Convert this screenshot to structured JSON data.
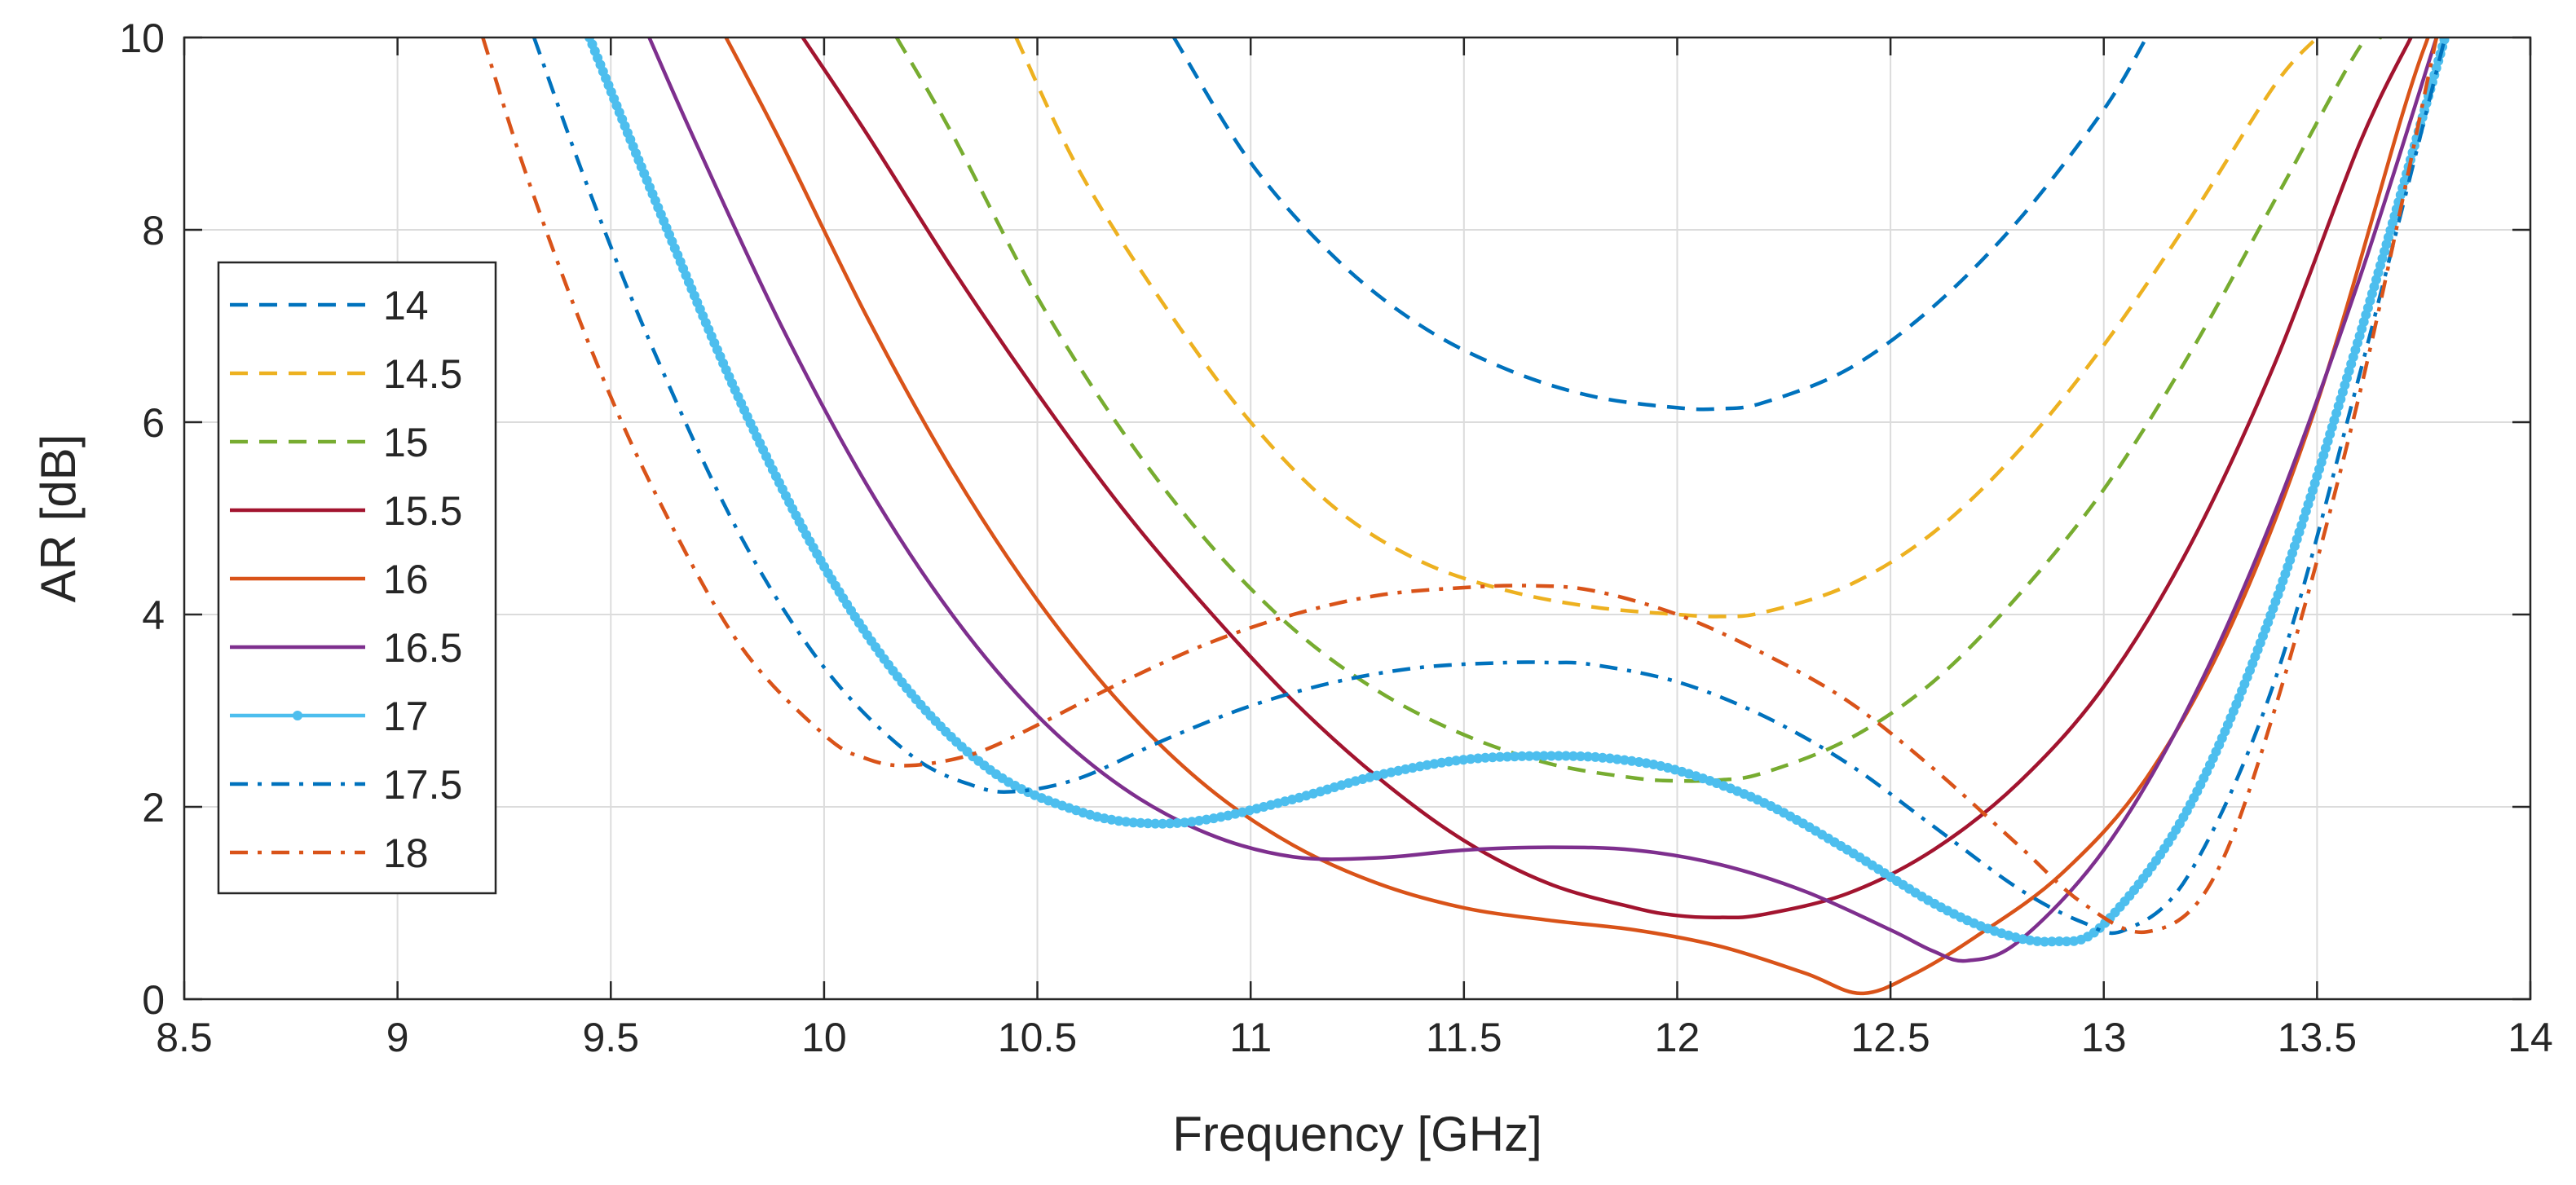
{
  "chart_data": {
    "type": "line",
    "title": "",
    "xlabel": "Frequency [GHz]",
    "ylabel": "AR [dB]",
    "xlim": [
      8.5,
      14
    ],
    "ylim": [
      0,
      10
    ],
    "grid": true,
    "legend_position": "left",
    "xticks": [
      "8.5",
      "9",
      "9.5",
      "10",
      "10.5",
      "11",
      "11.5",
      "12",
      "12.5",
      "13",
      "13.5",
      "14"
    ],
    "yticks": [
      "0",
      "2",
      "4",
      "6",
      "8",
      "10"
    ],
    "series": [
      {
        "name": "14",
        "color": "#0072BD",
        "style": "dashed",
        "x": [
          10.82,
          11.0,
          11.2,
          11.4,
          11.6,
          11.8,
          12.0,
          12.1,
          12.2,
          12.4,
          12.6,
          12.8,
          13.0,
          13.1
        ],
        "y": [
          10.0,
          8.7,
          7.7,
          7.0,
          6.55,
          6.27,
          6.15,
          6.14,
          6.2,
          6.55,
          7.2,
          8.1,
          9.25,
          10.0
        ]
      },
      {
        "name": "14.5",
        "color": "#EDB120",
        "style": "dashed",
        "x": [
          10.45,
          10.6,
          10.8,
          11.0,
          11.2,
          11.4,
          11.6,
          11.8,
          12.0,
          12.1,
          12.2,
          12.4,
          12.6,
          12.8,
          13.0,
          13.2,
          13.4,
          13.5
        ],
        "y": [
          10.0,
          8.6,
          7.2,
          6.0,
          5.1,
          4.55,
          4.25,
          4.08,
          4.0,
          3.98,
          4.02,
          4.3,
          4.85,
          5.7,
          6.8,
          8.1,
          9.5,
          10.0
        ]
      },
      {
        "name": "15",
        "color": "#77AC30",
        "style": "dashed",
        "x": [
          10.17,
          10.3,
          10.5,
          10.7,
          10.9,
          11.1,
          11.3,
          11.5,
          11.7,
          11.9,
          12.0,
          12.1,
          12.2,
          12.4,
          12.6,
          12.8,
          13.0,
          13.2,
          13.4,
          13.6,
          13.65
        ],
        "y": [
          10.0,
          9.0,
          7.3,
          5.9,
          4.75,
          3.85,
          3.2,
          2.75,
          2.45,
          2.3,
          2.27,
          2.28,
          2.35,
          2.7,
          3.3,
          4.2,
          5.3,
          6.7,
          8.3,
          9.9,
          10.0
        ]
      },
      {
        "name": "15.5",
        "color": "#A2142F",
        "style": "solid",
        "x": [
          9.95,
          10.1,
          10.3,
          10.5,
          10.7,
          10.9,
          11.1,
          11.3,
          11.5,
          11.7,
          11.9,
          12.0,
          12.1,
          12.2,
          12.4,
          12.6,
          12.8,
          13.0,
          13.2,
          13.4,
          13.6,
          13.72
        ],
        "y": [
          10.0,
          9.0,
          7.6,
          6.3,
          5.1,
          4.05,
          3.1,
          2.3,
          1.65,
          1.2,
          0.95,
          0.87,
          0.85,
          0.88,
          1.1,
          1.55,
          2.25,
          3.25,
          4.7,
          6.6,
          8.9,
          10.0
        ]
      },
      {
        "name": "16",
        "color": "#D95319",
        "style": "solid",
        "x": [
          9.77,
          9.9,
          10.1,
          10.3,
          10.5,
          10.7,
          10.9,
          11.1,
          11.3,
          11.5,
          11.7,
          11.9,
          12.1,
          12.3,
          12.43,
          12.55,
          12.7,
          12.9,
          13.1,
          13.3,
          13.5,
          13.7,
          13.76
        ],
        "y": [
          10.0,
          8.9,
          7.1,
          5.5,
          4.15,
          3.05,
          2.2,
          1.6,
          1.2,
          0.95,
          0.82,
          0.72,
          0.55,
          0.27,
          0.06,
          0.25,
          0.65,
          1.3,
          2.3,
          3.9,
          6.2,
          9.2,
          10.0
        ]
      },
      {
        "name": "16.5",
        "color": "#7E2F8E",
        "style": "solid",
        "x": [
          9.59,
          9.7,
          9.9,
          10.1,
          10.3,
          10.5,
          10.7,
          10.9,
          11.1,
          11.3,
          11.5,
          11.7,
          11.9,
          12.1,
          12.3,
          12.5,
          12.6,
          12.68,
          12.8,
          13.0,
          13.2,
          13.4,
          13.6,
          13.78
        ],
        "y": [
          10.0,
          8.9,
          7.0,
          5.35,
          4.0,
          2.95,
          2.2,
          1.72,
          1.48,
          1.47,
          1.55,
          1.58,
          1.55,
          1.4,
          1.12,
          0.72,
          0.5,
          0.4,
          0.6,
          1.55,
          3.05,
          5.05,
          7.5,
          10.0
        ]
      },
      {
        "name": "17",
        "color": "#4DBEEE",
        "style": "solid-marker",
        "x": [
          9.45,
          9.6,
          9.8,
          10.0,
          10.2,
          10.4,
          10.6,
          10.75,
          10.9,
          11.1,
          11.3,
          11.5,
          11.7,
          11.85,
          12.0,
          12.2,
          12.4,
          12.6,
          12.75,
          12.88,
          13.0,
          13.2,
          13.4,
          13.6,
          13.8
        ],
        "y": [
          10.0,
          8.35,
          6.25,
          4.5,
          3.2,
          2.35,
          1.95,
          1.83,
          1.87,
          2.08,
          2.33,
          2.49,
          2.53,
          2.5,
          2.38,
          2.05,
          1.55,
          1.0,
          0.7,
          0.6,
          0.78,
          2.0,
          4.1,
          6.9,
          10.0
        ]
      },
      {
        "name": "17.5",
        "color": "#0072BD",
        "style": "dashdot",
        "x": [
          9.32,
          9.45,
          9.6,
          9.8,
          10.0,
          10.2,
          10.35,
          10.45,
          10.6,
          10.8,
          11.0,
          11.2,
          11.4,
          11.6,
          11.7,
          11.8,
          12.0,
          12.2,
          12.4,
          12.6,
          12.8,
          12.95,
          13.05,
          13.2,
          13.4,
          13.6,
          13.8
        ],
        "y": [
          10.0,
          8.4,
          6.75,
          4.85,
          3.45,
          2.55,
          2.22,
          2.16,
          2.3,
          2.7,
          3.05,
          3.3,
          3.45,
          3.5,
          3.5,
          3.48,
          3.3,
          2.95,
          2.45,
          1.8,
          1.15,
          0.8,
          0.72,
          1.3,
          3.3,
          6.5,
          10.0
        ]
      },
      {
        "name": "18",
        "color": "#D95319",
        "style": "dashdot",
        "x": [
          9.2,
          9.3,
          9.45,
          9.6,
          9.8,
          10.0,
          10.1,
          10.2,
          10.35,
          10.5,
          10.7,
          10.9,
          11.1,
          11.3,
          11.5,
          11.65,
          11.8,
          12.0,
          12.2,
          12.4,
          12.6,
          12.8,
          12.95,
          13.1,
          13.25,
          13.4,
          13.6,
          13.78
        ],
        "y": [
          10.0,
          8.6,
          6.8,
          5.3,
          3.7,
          2.75,
          2.5,
          2.43,
          2.55,
          2.85,
          3.3,
          3.7,
          4.0,
          4.2,
          4.28,
          4.3,
          4.25,
          4.0,
          3.6,
          3.1,
          2.4,
          1.6,
          1.0,
          0.7,
          1.2,
          3.0,
          6.3,
          10.0
        ]
      }
    ]
  }
}
